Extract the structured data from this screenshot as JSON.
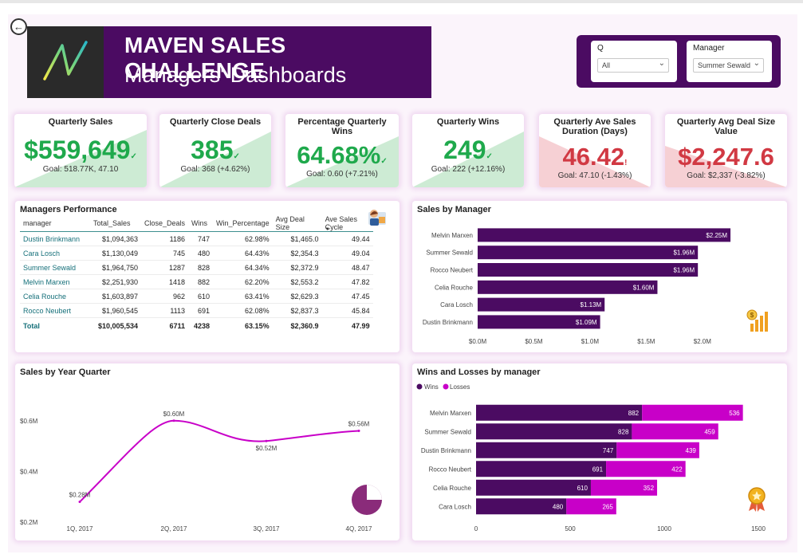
{
  "header": {
    "title": "MAVEN SALES CHALLENGE",
    "subtitle": "Managers' Dashboards"
  },
  "filters": {
    "q_label": "Q",
    "q_value": "All",
    "manager_label": "Manager",
    "manager_value": "Summer Sewald"
  },
  "kpis": [
    {
      "title": "Quarterly Sales",
      "value": "$559,649",
      "goal": "Goal: 518.77K, 47.10",
      "status": "up"
    },
    {
      "title": "Quarterly Close Deals",
      "value": "385",
      "goal": "Goal: 368 (+4.62%)",
      "status": "up"
    },
    {
      "title": "Percentage Quarterly Wins",
      "value": "64.68%",
      "goal": "Goal: 0.60 (+7.21%)",
      "status": "up"
    },
    {
      "title": "Quarterly Wins",
      "value": "249",
      "goal": "Goal: 222 (+12.16%)",
      "status": "up"
    },
    {
      "title": "Quarterly Ave Sales Duration (Days)",
      "value": "46.42",
      "goal": "Goal: 47.10 (-1.43%)",
      "status": "down"
    },
    {
      "title": "Quarterly Avg Deal Size Value",
      "value": "$2,247.6",
      "goal": "Goal: $2,337 (-3.82%)",
      "status": "down"
    }
  ],
  "colors": {
    "good": "#1fa94c",
    "bad": "#d13943",
    "good_bg": "#cdebd4",
    "bad_bg": "#f6d0d4",
    "primary": "#4b0b62",
    "losses": "#c800c8",
    "line": "#c800c8"
  },
  "performance": {
    "title": "Managers Performance",
    "columns": [
      "manager",
      "Total_Sales",
      "Close_Deals",
      "Wins",
      "Win_Percentage",
      "Avg Deal Size",
      "Ave Sales Cycle"
    ],
    "rows": [
      [
        "Dustin Brinkmann",
        "$1,094,363",
        "1186",
        "747",
        "62.98%",
        "$1,465.0",
        "49.44"
      ],
      [
        "Cara Losch",
        "$1,130,049",
        "745",
        "480",
        "64.43%",
        "$2,354.3",
        "49.04"
      ],
      [
        "Summer Sewald",
        "$1,964,750",
        "1287",
        "828",
        "64.34%",
        "$2,372.9",
        "48.47"
      ],
      [
        "Melvin Marxen",
        "$2,251,930",
        "1418",
        "882",
        "62.20%",
        "$2,553.2",
        "47.82"
      ],
      [
        "Celia Rouche",
        "$1,603,897",
        "962",
        "610",
        "63.41%",
        "$2,629.3",
        "47.45"
      ],
      [
        "Rocco Neubert",
        "$1,960,545",
        "1113",
        "691",
        "62.08%",
        "$2,837.3",
        "45.84"
      ]
    ],
    "total": [
      "Total",
      "$10,005,534",
      "6711",
      "4238",
      "63.15%",
      "$2,360.9",
      "47.99"
    ]
  },
  "chart_data": [
    {
      "type": "bar",
      "orientation": "horizontal",
      "title": "Sales by Manager",
      "categories": [
        "Melvin Marxen",
        "Summer Sewald",
        "Rocco Neubert",
        "Celia Rouche",
        "Cara Losch",
        "Dustin Brinkmann"
      ],
      "values": [
        2.25,
        1.96,
        1.96,
        1.6,
        1.13,
        1.09
      ],
      "value_labels": [
        "$2.25M",
        "$1.96M",
        "$1.96M",
        "$1.60M",
        "$1.13M",
        "$1.09M"
      ],
      "xlim": [
        0,
        2.2
      ],
      "xticks": [
        0,
        0.5,
        1.0,
        1.5,
        2.0
      ],
      "xtick_labels": [
        "$0.0M",
        "$0.5M",
        "$1.0M",
        "$1.5M",
        "$2.0M"
      ],
      "unit": "$M"
    },
    {
      "type": "line",
      "title": "Sales by Year Quarter",
      "categories": [
        "1Q, 2017",
        "2Q, 2017",
        "3Q, 2017",
        "4Q, 2017"
      ],
      "values": [
        0.28,
        0.6,
        0.52,
        0.56
      ],
      "value_labels": [
        "$0.28M",
        "$0.60M",
        "$0.52M",
        "$0.56M"
      ],
      "ylim": [
        0.2,
        0.7
      ],
      "yticks": [
        0.2,
        0.4,
        0.6
      ],
      "ytick_labels": [
        "$0.2M",
        "$0.4M",
        "$0.6M"
      ]
    },
    {
      "type": "bar",
      "orientation": "horizontal",
      "stacked": true,
      "title": "Wins and Losses by manager",
      "categories": [
        "Melvin Marxen",
        "Summer Sewald",
        "Dustin Brinkmann",
        "Rocco Neubert",
        "Celia Rouche",
        "Cara Losch"
      ],
      "series": [
        {
          "name": "Wins",
          "values": [
            882,
            828,
            747,
            691,
            610,
            480
          ]
        },
        {
          "name": "Losses",
          "values": [
            536,
            459,
            439,
            422,
            352,
            265
          ]
        }
      ],
      "xlim": [
        0,
        1500
      ],
      "xticks": [
        0,
        500,
        1000,
        1500
      ],
      "xtick_labels": [
        "0",
        "500",
        "1000",
        "1500"
      ],
      "legend": "top-left"
    }
  ]
}
